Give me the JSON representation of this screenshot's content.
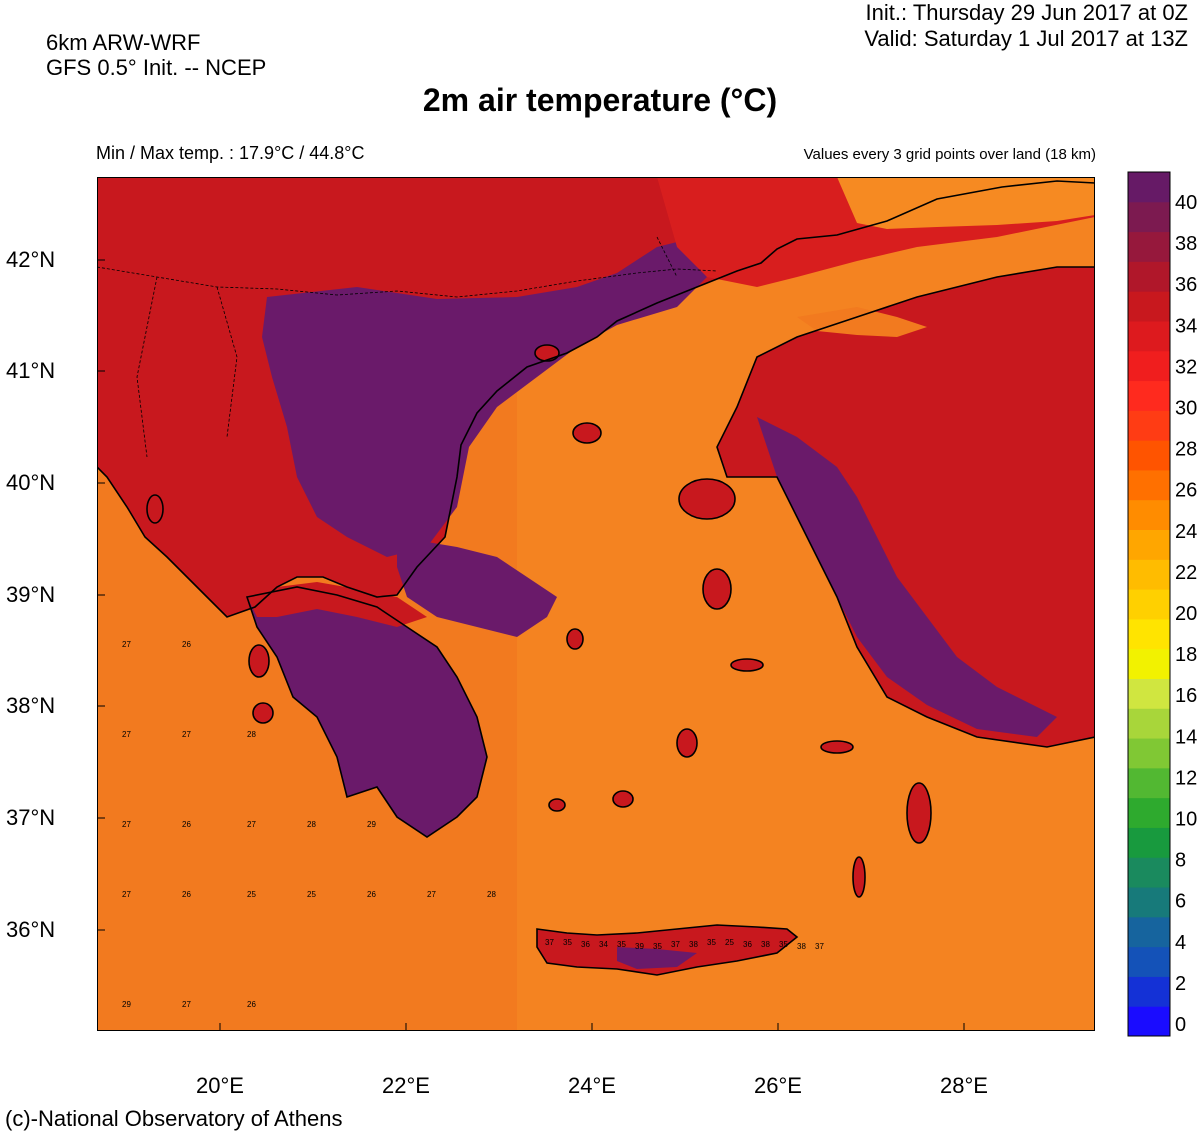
{
  "header": {
    "model_line1": "6km ARW-WRF",
    "model_line2": "GFS 0.5° Init. -- NCEP",
    "init": "Init.:  Thursday 29 Jun 2017 at 0Z",
    "valid": "Valid: Saturday 1 Jul 2017 at 13Z",
    "title": "2m air temperature (°C)",
    "minmax": "Min / Max temp. : 17.9°C / 44.8°C",
    "values_note": "Values every 3 grid points over land (18 km)"
  },
  "footer": {
    "credit": "(c)-National Observatory of Athens"
  },
  "axes": {
    "lon_labels": [
      "20°E",
      "22°E",
      "24°E",
      "26°E",
      "28°E"
    ],
    "lat_labels": [
      "42°N",
      "41°N",
      "40°N",
      "39°N",
      "38°N",
      "37°N",
      "36°N"
    ]
  },
  "colorbar": {
    "labels": [
      "40",
      "38",
      "36",
      "34",
      "32",
      "30",
      "28",
      "26",
      "24",
      "22",
      "20",
      "18",
      "16",
      "14",
      "12",
      "10",
      "8",
      "6",
      "4",
      "2",
      "0"
    ],
    "colors": [
      "#1a0cff",
      "#1431d6",
      "#1452b8",
      "#16649e",
      "#177a7a",
      "#1a8a5e",
      "#189a3e",
      "#2eaa2e",
      "#52b832",
      "#80c834",
      "#a8d63a",
      "#d0e640",
      "#f2f200",
      "#ffe400",
      "#ffd000",
      "#ffbc00",
      "#ffa600",
      "#ff8c00",
      "#ff7000",
      "#ff5400",
      "#ff3c14",
      "#ff2a1e",
      "#f01e1e",
      "#dd1a1e",
      "#c8181e",
      "#b0172a",
      "#96183c",
      "#7c1a50",
      "#661a66"
    ]
  },
  "map": {
    "sea_color": "#f27a1f",
    "hot_land_color": "#6a1a6a",
    "warm_land_color": "#c8181e",
    "sea_values": [
      "27",
      "26",
      "27",
      "27",
      "28",
      "27",
      "26",
      "27",
      "28",
      "29",
      "27",
      "26",
      "25",
      "25",
      "26",
      "27",
      "28",
      "29",
      "27",
      "26"
    ],
    "crete_values": [
      "37",
      "35",
      "36",
      "34",
      "35",
      "39",
      "35",
      "37",
      "38",
      "35",
      "25",
      "36",
      "38",
      "35",
      "38",
      "37"
    ]
  }
}
